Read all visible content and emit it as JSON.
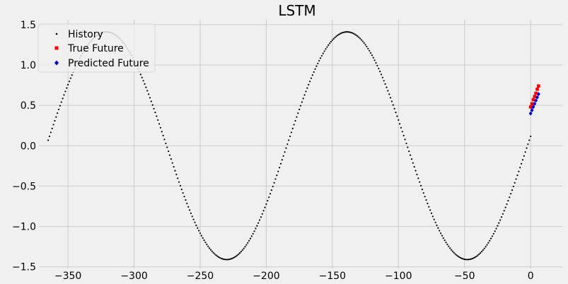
{
  "chart_data": {
    "type": "scatter",
    "title": "LSTM",
    "xlabel": "",
    "ylabel": "",
    "xlim": [
      -372,
      24
    ],
    "ylim": [
      -1.52,
      1.56
    ],
    "x_ticks": [
      -350,
      -300,
      -250,
      -200,
      -150,
      -100,
      -50,
      0
    ],
    "x_tick_labels": [
      "−350",
      "−300",
      "−250",
      "−200",
      "−150",
      "−100",
      "−50",
      "0"
    ],
    "y_ticks": [
      1.5,
      1.0,
      0.5,
      0.0,
      -0.5,
      -1.0,
      -1.5
    ],
    "y_tick_labels": [
      "1.5",
      "1.0",
      "0.5",
      "0.0",
      "−0.5",
      "−1.0",
      "−1.5"
    ],
    "grid": true,
    "legend_position": "top-left",
    "colors": {
      "background": "#f0f0f0",
      "history": "#000000",
      "true_future": "#ff0000",
      "predicted_future": "#0000cc"
    },
    "series": [
      {
        "name": "History",
        "marker": "dot",
        "description_function": "y = 1.41*sin(2*pi*(x+2.4)/182), sampled at each integer x",
        "x_start": -365,
        "x_end": 0,
        "x_step": 1,
        "amplitude": 1.41,
        "period": 182,
        "phase_shift": 2.4
      },
      {
        "name": "True Future",
        "marker": "square",
        "x": [
          0,
          1,
          2,
          3,
          4,
          5,
          6
        ],
        "y": [
          0.48,
          0.52,
          0.57,
          0.61,
          0.65,
          0.7,
          0.74
        ]
      },
      {
        "name": "Predicted Future",
        "marker": "diamond",
        "x": [
          0,
          1,
          2,
          3,
          4,
          5,
          6
        ],
        "y": [
          0.4,
          0.44,
          0.48,
          0.52,
          0.56,
          0.6,
          0.64
        ]
      }
    ]
  }
}
